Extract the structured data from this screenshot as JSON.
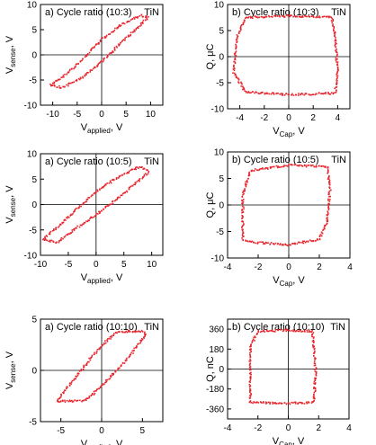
{
  "chart_data": [
    {
      "id": "p1",
      "type": "scatter",
      "title": "a) Cycle ratio (10:3)",
      "tag": "TiN",
      "xlabel_main": "V",
      "xlabel_sub": "applied",
      "xlabel_unit": ", V",
      "ylabel_main": "V",
      "ylabel_sub": "sense",
      "ylabel_unit": ", V",
      "xlim": [
        -12.5,
        12.5
      ],
      "ylim": [
        -10,
        10
      ],
      "xticks": [
        -10,
        -5,
        0,
        5,
        10
      ],
      "yticks": [
        -10,
        -5,
        0,
        5,
        10
      ],
      "xtick_labels": [
        "-10",
        "-5",
        "0",
        "5",
        "10"
      ],
      "ytick_labels": [
        "-10",
        "-5",
        "0",
        "5",
        "10"
      ],
      "series": [
        {
          "shape": "loop",
          "points": [
            [
              -10.5,
              -6
            ],
            [
              -8,
              -4.5
            ],
            [
              -4,
              -1
            ],
            [
              0,
              3
            ],
            [
              4,
              6
            ],
            [
              8,
              7.8
            ],
            [
              9.5,
              7.5
            ],
            [
              7,
              5
            ],
            [
              3,
              1.5
            ],
            [
              0,
              -1.5
            ],
            [
              -4,
              -4.5
            ],
            [
              -8,
              -6.5
            ],
            [
              -10.5,
              -6
            ]
          ]
        }
      ]
    },
    {
      "id": "p2",
      "type": "scatter",
      "title": "b) Cycle ratio (10:3)",
      "tag": "TiN",
      "xlabel_main": "V",
      "xlabel_sub": "Cap",
      "xlabel_unit": ", V",
      "ylabel_main": "Q, μC",
      "ylabel_sub": "",
      "ylabel_unit": "",
      "xlim": [
        -5,
        5
      ],
      "ylim": [
        -10,
        10
      ],
      "xticks": [
        -4,
        -2,
        0,
        2,
        4
      ],
      "yticks": [
        -10,
        -5,
        0,
        5,
        10
      ],
      "xtick_labels": [
        "-4",
        "-2",
        "0",
        "2",
        "4"
      ],
      "ytick_labels": [
        "-10",
        "-5",
        "0",
        "5",
        "10"
      ],
      "series": [
        {
          "shape": "loop",
          "points": [
            [
              -4.5,
              -3
            ],
            [
              -4.2,
              4
            ],
            [
              -3.5,
              7.5
            ],
            [
              0,
              7.8
            ],
            [
              3.5,
              7.5
            ],
            [
              3.8,
              4
            ],
            [
              4,
              -3
            ],
            [
              3.8,
              -7
            ],
            [
              0,
              -7.3
            ],
            [
              -3.5,
              -6.8
            ],
            [
              -4.5,
              -3
            ]
          ]
        }
      ]
    },
    {
      "id": "p3",
      "type": "scatter",
      "title": "a) Cycle ratio (10:5)",
      "tag": "TiN",
      "xlabel_main": "V",
      "xlabel_sub": "applied",
      "xlabel_unit": ", V",
      "ylabel_main": "V",
      "ylabel_sub": "sense",
      "ylabel_unit": ", V",
      "xlim": [
        -10,
        12
      ],
      "ylim": [
        -10,
        10
      ],
      "xticks": [
        -10,
        -5,
        0,
        5,
        10
      ],
      "yticks": [
        -10,
        -5,
        0,
        5,
        10
      ],
      "xtick_labels": [
        "-10",
        "-5",
        "0",
        "5",
        "10"
      ],
      "ytick_labels": [
        "-10",
        "-5",
        "0",
        "5",
        "10"
      ],
      "series": [
        {
          "shape": "loop",
          "points": [
            [
              -9.5,
              -6.8
            ],
            [
              -7,
              -4.5
            ],
            [
              -3,
              -0.5
            ],
            [
              0,
              2.5
            ],
            [
              4,
              5.5
            ],
            [
              8,
              7.5
            ],
            [
              9.5,
              6.5
            ],
            [
              7,
              4
            ],
            [
              3,
              0.5
            ],
            [
              0,
              -2
            ],
            [
              -4,
              -5
            ],
            [
              -7,
              -7.5
            ],
            [
              -9.5,
              -6.8
            ]
          ]
        }
      ]
    },
    {
      "id": "p4",
      "type": "scatter",
      "title": "b) Cycle ratio (10:5)",
      "tag": "TiN",
      "xlabel_main": "V",
      "xlabel_sub": "Cap",
      "xlabel_unit": ", V",
      "ylabel_main": "Q, μC",
      "ylabel_sub": "",
      "ylabel_unit": "",
      "xlim": [
        -4,
        4
      ],
      "ylim": [
        -10,
        10
      ],
      "xticks": [
        -4,
        -2,
        0,
        2,
        4
      ],
      "yticks": [
        -10,
        -5,
        0,
        5,
        10
      ],
      "xtick_labels": [
        "-4",
        "-2",
        "0",
        "2",
        "4"
      ],
      "ytick_labels": [
        "-10",
        "-5",
        "0",
        "5",
        "10"
      ],
      "series": [
        {
          "shape": "loop",
          "points": [
            [
              -3,
              -6.5
            ],
            [
              -3,
              2
            ],
            [
              -2.5,
              6.5
            ],
            [
              0,
              7.5
            ],
            [
              2.5,
              7.2
            ],
            [
              2.7,
              3
            ],
            [
              2.5,
              -3
            ],
            [
              2,
              -6.5
            ],
            [
              0,
              -7.5
            ],
            [
              -2.5,
              -7
            ],
            [
              -3,
              -6.5
            ]
          ]
        }
      ]
    },
    {
      "id": "p5",
      "type": "scatter",
      "title": "a) Cycle ratio (10:10)",
      "tag": "TiN",
      "xlabel_main": "V",
      "xlabel_sub": "applied",
      "xlabel_unit": ", V",
      "ylabel_main": "V",
      "ylabel_sub": "sense",
      "ylabel_unit": ", V",
      "xlim": [
        -7.5,
        7.5
      ],
      "ylim": [
        -5,
        5
      ],
      "xticks": [
        -5,
        0,
        5
      ],
      "yticks": [
        -5,
        0,
        5
      ],
      "xtick_labels": [
        "-5",
        "0",
        "5"
      ],
      "ytick_labels": [
        "-5",
        "0",
        "5"
      ],
      "series": [
        {
          "shape": "loop",
          "points": [
            [
              -5.5,
              -3
            ],
            [
              -4,
              -1.5
            ],
            [
              -1,
              1.5
            ],
            [
              0.5,
              2.8
            ],
            [
              2,
              3.8
            ],
            [
              5,
              3.8
            ],
            [
              5.5,
              3.5
            ],
            [
              3,
              1
            ],
            [
              0,
              -1.5
            ],
            [
              -2,
              -3
            ],
            [
              -5.5,
              -3
            ]
          ]
        }
      ]
    },
    {
      "id": "p6",
      "type": "scatter",
      "title": "b) Cycle ratio (10:10)",
      "tag": "TiN",
      "xlabel_main": "V",
      "xlabel_sub": "Cap",
      "xlabel_unit": ", V",
      "ylabel_main": "Q, nC",
      "ylabel_sub": "",
      "ylabel_unit": "",
      "xlim": [
        -4,
        4
      ],
      "ylim": [
        -450,
        450
      ],
      "xticks": [
        -4,
        -2,
        0,
        2,
        4
      ],
      "yticks": [
        -360,
        -180,
        0,
        180,
        360
      ],
      "xtick_labels": [
        "-4",
        "-2",
        "0",
        "2",
        "4"
      ],
      "ytick_labels": [
        "-360",
        "-180",
        "0",
        "180",
        "360"
      ],
      "series": [
        {
          "shape": "loop",
          "points": [
            [
              -2.5,
              -300
            ],
            [
              -2.5,
              200
            ],
            [
              -2,
              340
            ],
            [
              0,
              350
            ],
            [
              1.6,
              340
            ],
            [
              1.8,
              0
            ],
            [
              1.7,
              -300
            ],
            [
              0,
              -310
            ],
            [
              -2.5,
              -300
            ]
          ]
        }
      ]
    }
  ]
}
